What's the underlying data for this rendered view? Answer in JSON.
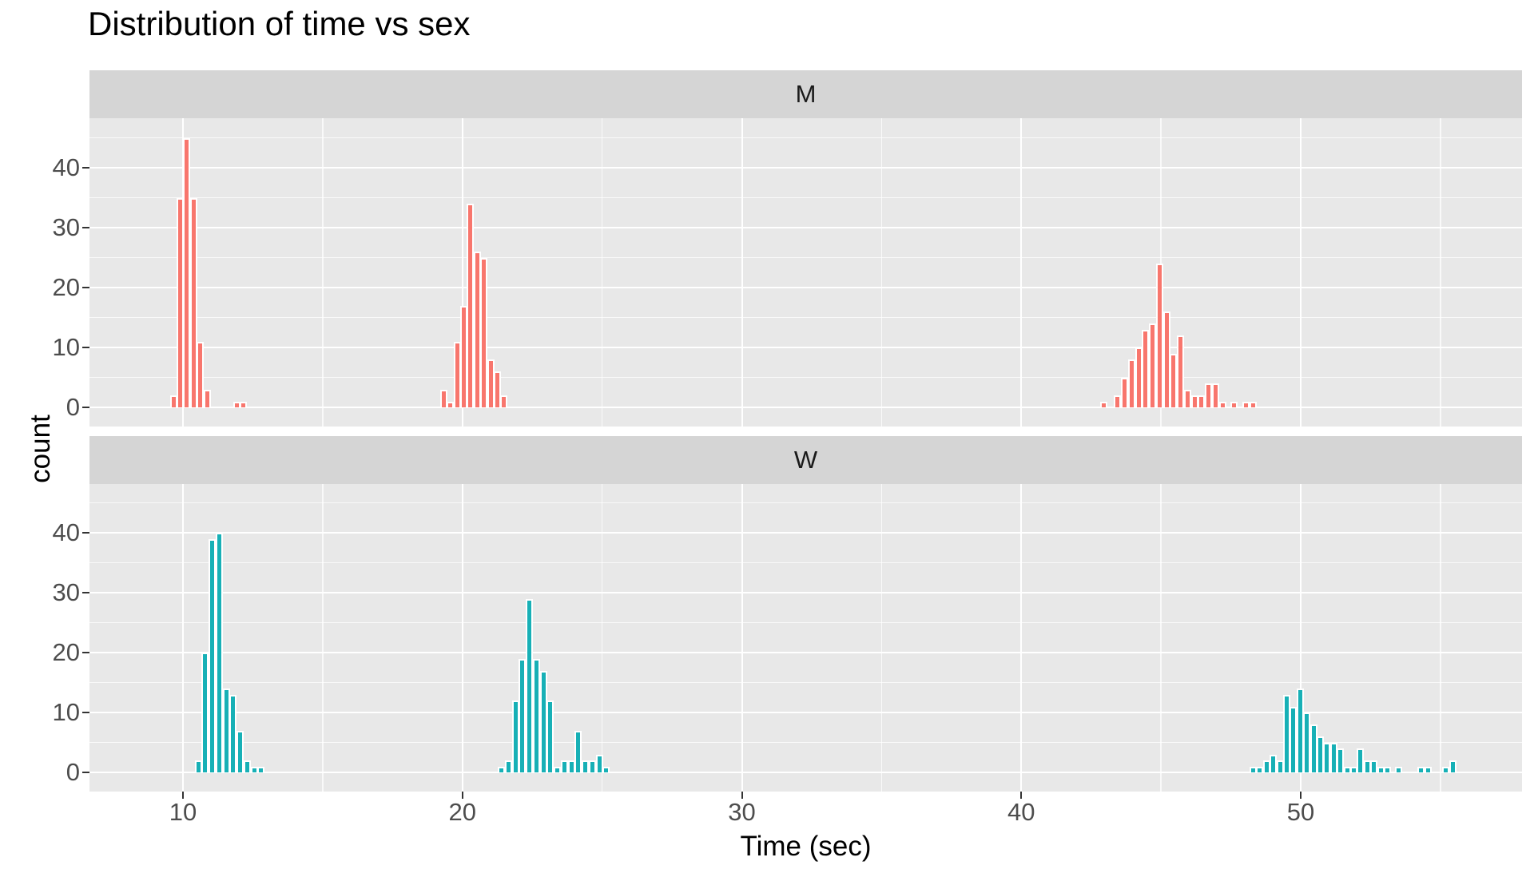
{
  "title": "Distribution of time vs sex",
  "axes": {
    "x_title": "Time (sec)",
    "y_title": "count",
    "x_tick_labels": [
      "10",
      "20",
      "30",
      "40",
      "50"
    ],
    "y_tick_labels": [
      "0",
      "10",
      "20",
      "30",
      "40"
    ]
  },
  "style": {
    "panel_background": "#e8e8e8",
    "strip_background": "#d5d5d5",
    "gridline_color": "#ffffff",
    "bar_border_color": "#ffffff",
    "facet_m_color": "#f8766d",
    "facet_w_color": "#17b0b6",
    "tick_text_color": "#4d4d4d"
  },
  "chart_data": {
    "type": "bar",
    "subtype": "faceted-histogram",
    "title": "Distribution of time vs sex",
    "xlabel": "Time (sec)",
    "ylabel": "count",
    "x_tick_values": [
      10,
      20,
      30,
      40,
      50
    ],
    "y_tick_values": [
      0,
      10,
      20,
      30,
      40
    ],
    "x_minor_gridlines": [
      15,
      25,
      35,
      45,
      55
    ],
    "y_minor_gridlines": [
      5,
      15,
      25,
      35,
      45
    ],
    "xlim": [
      6.7,
      57.9
    ],
    "ylim": [
      0,
      48
    ],
    "binwidth_sec": 0.25,
    "grid": "on",
    "legend": "none",
    "facet_layout": "rows",
    "facets": [
      {
        "label": "M",
        "color": "#f8766d",
        "bars": [
          [
            9.66,
            2
          ],
          [
            9.9,
            35
          ],
          [
            10.14,
            45
          ],
          [
            10.38,
            35
          ],
          [
            10.62,
            11
          ],
          [
            10.86,
            3
          ],
          [
            11.93,
            1
          ],
          [
            12.17,
            1
          ],
          [
            19.33,
            3
          ],
          [
            19.57,
            1
          ],
          [
            19.81,
            11
          ],
          [
            20.05,
            17
          ],
          [
            20.29,
            34
          ],
          [
            20.53,
            26
          ],
          [
            20.77,
            25
          ],
          [
            21.01,
            8
          ],
          [
            21.25,
            6
          ],
          [
            21.49,
            2
          ],
          [
            42.95,
            1
          ],
          [
            43.45,
            2
          ],
          [
            43.7,
            5
          ],
          [
            43.95,
            8
          ],
          [
            44.2,
            10
          ],
          [
            44.45,
            13
          ],
          [
            44.7,
            14
          ],
          [
            44.95,
            24
          ],
          [
            45.2,
            16
          ],
          [
            45.45,
            9
          ],
          [
            45.7,
            12
          ],
          [
            45.95,
            3
          ],
          [
            46.2,
            2
          ],
          [
            46.45,
            2
          ],
          [
            46.7,
            4
          ],
          [
            46.95,
            4
          ],
          [
            47.2,
            1
          ],
          [
            47.6,
            1
          ],
          [
            48.05,
            1
          ],
          [
            48.3,
            1
          ]
        ]
      },
      {
        "label": "W",
        "color": "#17b0b6",
        "bars": [
          [
            10.55,
            2
          ],
          [
            10.8,
            20
          ],
          [
            11.05,
            39
          ],
          [
            11.3,
            40
          ],
          [
            11.55,
            14
          ],
          [
            11.8,
            13
          ],
          [
            12.05,
            7
          ],
          [
            12.3,
            2
          ],
          [
            12.55,
            1
          ],
          [
            12.8,
            1
          ],
          [
            21.4,
            1
          ],
          [
            21.65,
            2
          ],
          [
            21.9,
            12
          ],
          [
            22.15,
            19
          ],
          [
            22.4,
            29
          ],
          [
            22.65,
            19
          ],
          [
            22.9,
            17
          ],
          [
            23.15,
            12
          ],
          [
            23.4,
            1
          ],
          [
            23.65,
            2
          ],
          [
            23.9,
            2
          ],
          [
            24.15,
            7
          ],
          [
            24.4,
            2
          ],
          [
            24.65,
            2
          ],
          [
            24.9,
            3
          ],
          [
            25.15,
            1
          ],
          [
            48.3,
            1
          ],
          [
            48.54,
            1
          ],
          [
            48.78,
            2
          ],
          [
            49.02,
            3
          ],
          [
            49.26,
            2
          ],
          [
            49.5,
            13
          ],
          [
            49.74,
            11
          ],
          [
            49.98,
            14
          ],
          [
            50.22,
            10
          ],
          [
            50.46,
            8
          ],
          [
            50.7,
            6
          ],
          [
            50.94,
            5
          ],
          [
            51.18,
            5
          ],
          [
            51.42,
            4
          ],
          [
            51.66,
            1
          ],
          [
            51.9,
            1
          ],
          [
            52.14,
            4
          ],
          [
            52.38,
            2
          ],
          [
            52.62,
            2
          ],
          [
            52.86,
            1
          ],
          [
            53.1,
            1
          ],
          [
            53.5,
            1
          ],
          [
            54.3,
            1
          ],
          [
            54.55,
            1
          ],
          [
            55.2,
            1
          ],
          [
            55.45,
            2
          ]
        ]
      }
    ]
  }
}
